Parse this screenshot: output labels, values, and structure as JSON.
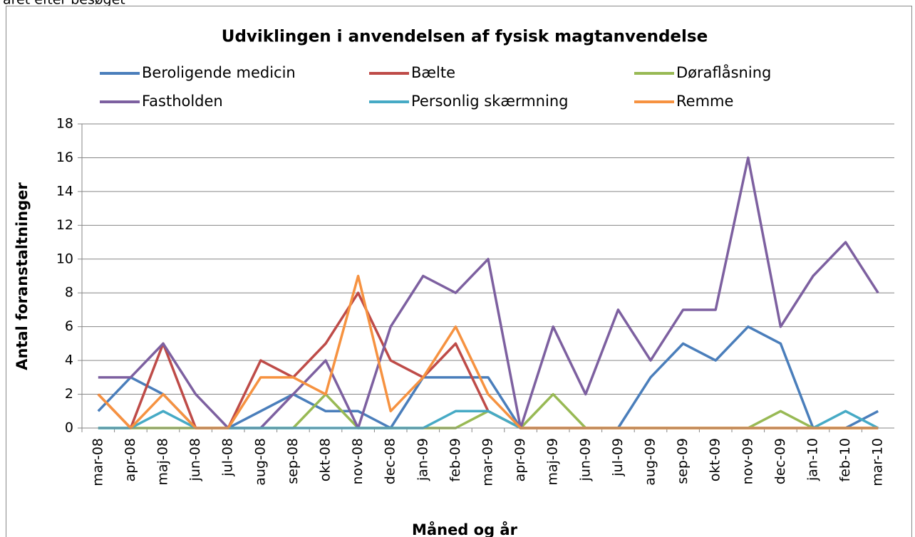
{
  "caption": "året efter besøget",
  "chart_data": {
    "type": "line",
    "title": "Udviklingen i anvendelsen af fysisk magtanvendelse",
    "x_label": "Måned og år",
    "y_label": "Antal foranstaltninger",
    "categories": [
      "mar-08",
      "apr-08",
      "maj-08",
      "jun-08",
      "jul-08",
      "aug-08",
      "sep-08",
      "okt-08",
      "nov-08",
      "dec-08",
      "jan-09",
      "feb-09",
      "mar-09",
      "apr-09",
      "maj-09",
      "jun-09",
      "jul-09",
      "aug-09",
      "sep-09",
      "okt-09",
      "nov-09",
      "dec-09",
      "jan-10",
      "feb-10",
      "mar-10"
    ],
    "series": [
      {
        "name": "Beroligende medicin",
        "color": "#4a7ebb",
        "values": [
          1,
          3,
          2,
          0,
          0,
          1,
          2,
          1,
          1,
          0,
          3,
          3,
          3,
          0,
          0,
          0,
          0,
          3,
          5,
          4,
          6,
          5,
          0,
          0,
          1
        ]
      },
      {
        "name": "Bælte",
        "color": "#be4b48",
        "values": [
          2,
          0,
          5,
          0,
          0,
          4,
          3,
          5,
          8,
          4,
          3,
          5,
          1,
          0,
          0,
          0,
          0,
          0,
          0,
          0,
          0,
          0,
          0,
          0,
          0
        ]
      },
      {
        "name": "Døraflåsning",
        "color": "#98b954",
        "values": [
          0,
          0,
          0,
          0,
          0,
          0,
          0,
          2,
          0,
          0,
          0,
          0,
          1,
          0,
          2,
          0,
          0,
          0,
          0,
          0,
          0,
          1,
          0,
          0,
          0
        ]
      },
      {
        "name": "Fastholden",
        "color": "#7d60a0",
        "values": [
          3,
          3,
          5,
          2,
          0,
          0,
          2,
          4,
          0,
          6,
          9,
          8,
          10,
          0,
          6,
          2,
          7,
          4,
          7,
          7,
          16,
          6,
          9,
          11,
          8
        ]
      },
      {
        "name": "Personlig skærmning",
        "color": "#46aac5",
        "values": [
          0,
          0,
          1,
          0,
          0,
          0,
          0,
          0,
          0,
          0,
          0,
          1,
          1,
          0,
          0,
          0,
          0,
          0,
          0,
          0,
          0,
          0,
          0,
          1,
          0
        ]
      },
      {
        "name": "Remme",
        "color": "#f69240",
        "values": [
          2,
          0,
          2,
          0,
          0,
          3,
          3,
          2,
          9,
          1,
          3,
          6,
          2,
          0,
          0,
          0,
          0,
          0,
          0,
          0,
          0,
          0,
          0,
          0,
          0
        ]
      }
    ],
    "ylim": [
      0,
      18
    ],
    "yticks": [
      0,
      2,
      4,
      6,
      8,
      10,
      12,
      14,
      16,
      18
    ],
    "grid": true
  }
}
